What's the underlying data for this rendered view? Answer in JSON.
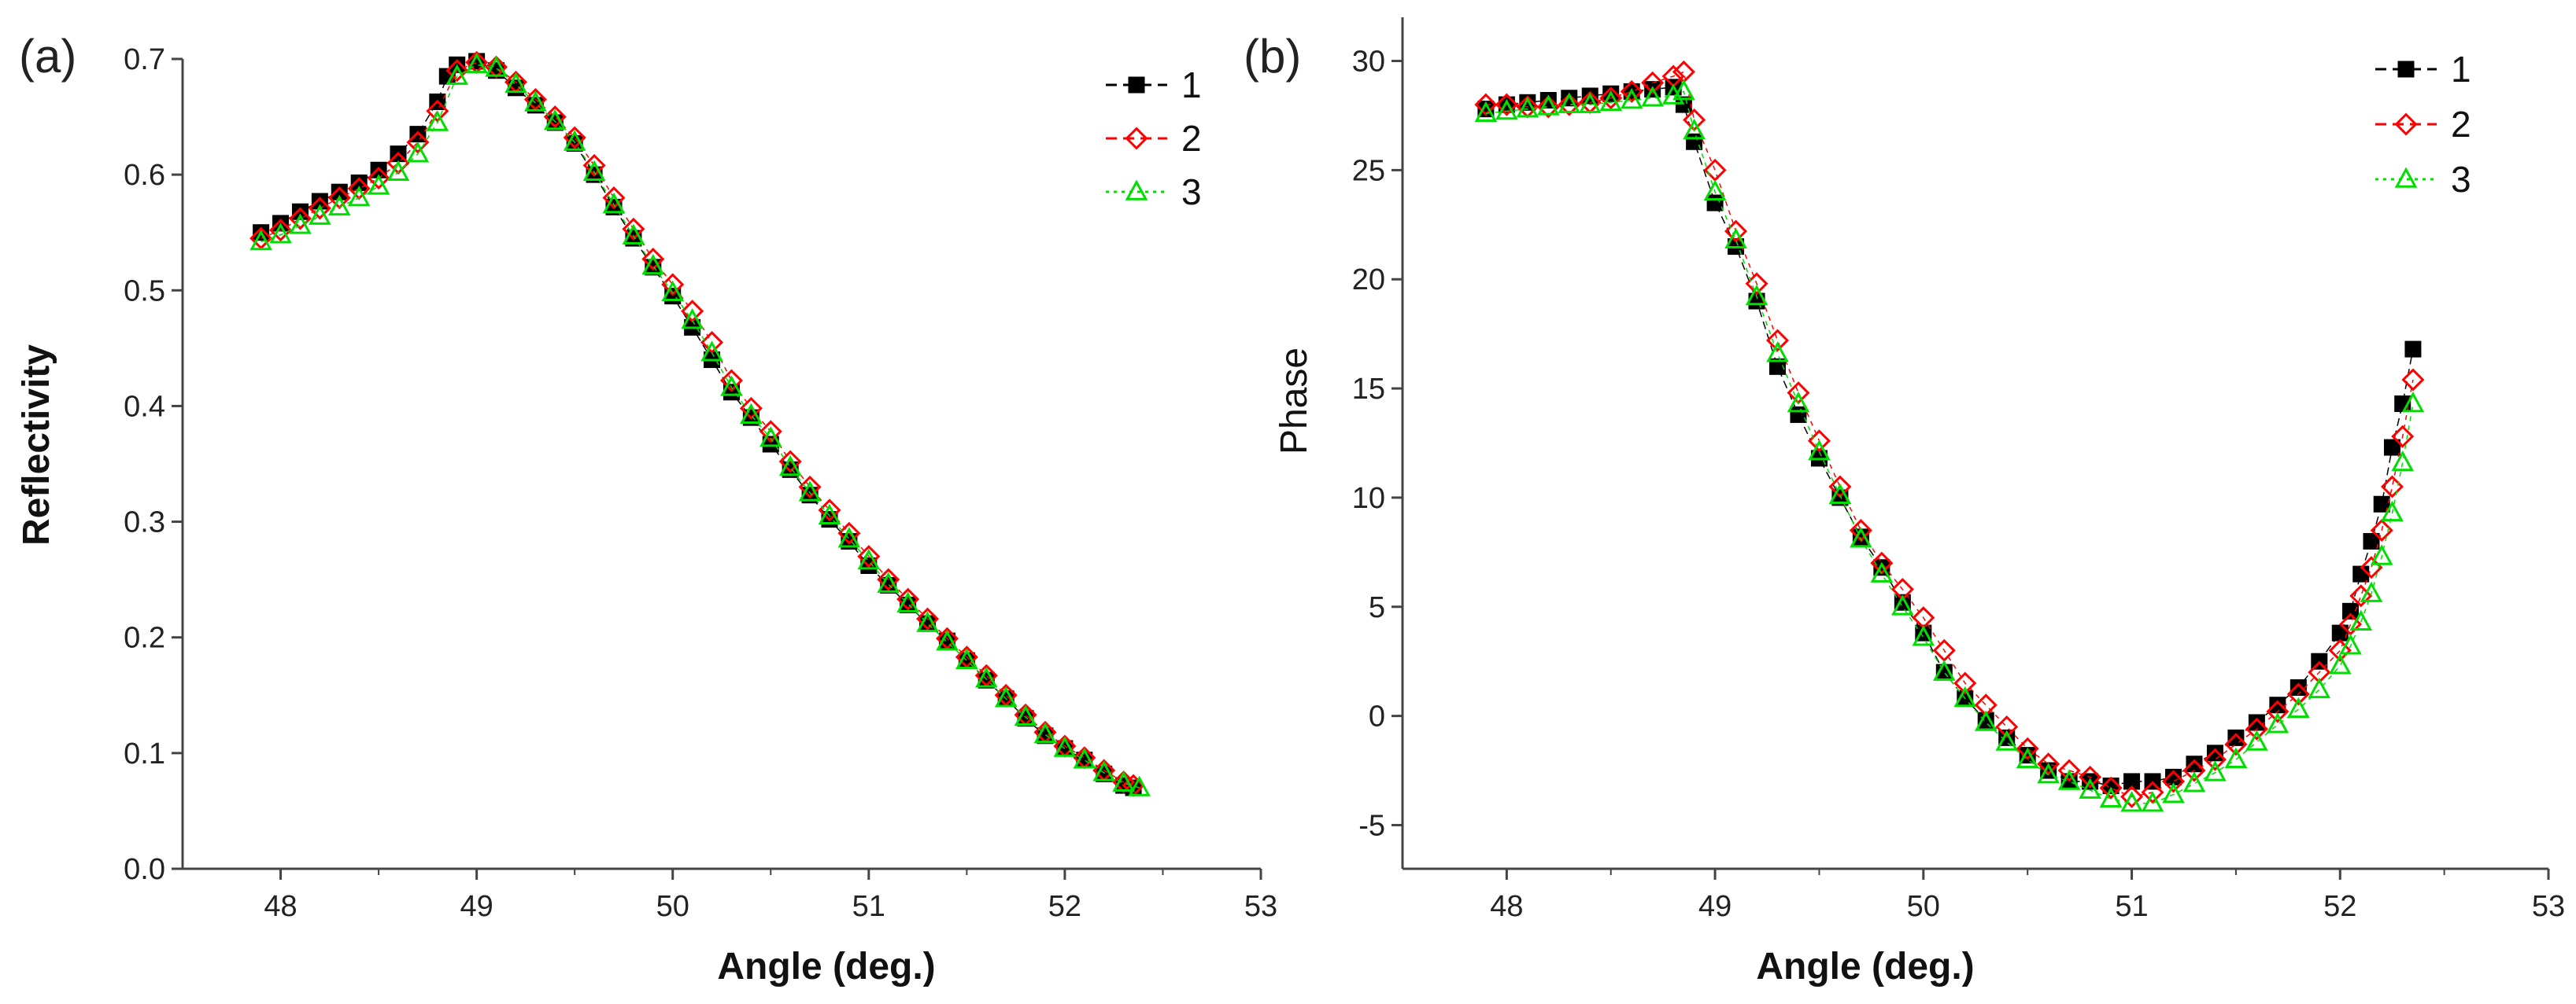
{
  "chart_data": [
    {
      "type": "scatter",
      "panel_label": "(a)",
      "title": "",
      "xlabel": "Angle (deg.)",
      "ylabel": "Reflectivity",
      "xlim": [
        47.5,
        53
      ],
      "ylim": [
        0.0,
        0.7
      ],
      "xticks": [
        "48",
        "49",
        "50",
        "51",
        "52",
        "53"
      ],
      "yticks": [
        "0.0",
        "0.1",
        "0.2",
        "0.3",
        "0.4",
        "0.5",
        "0.6",
        "0.7"
      ],
      "legend_position": "top-right",
      "series": [
        {
          "name": "1",
          "color": "#000000",
          "marker": "square",
          "x": [
            47.9,
            48.0,
            48.1,
            48.2,
            48.3,
            48.4,
            48.5,
            48.6,
            48.7,
            48.8,
            48.85,
            48.9,
            49.0,
            49.1,
            49.2,
            49.3,
            49.4,
            49.5,
            49.6,
            49.7,
            49.8,
            49.9,
            50.0,
            50.1,
            50.2,
            50.3,
            50.4,
            50.5,
            50.6,
            50.7,
            50.8,
            50.9,
            51.0,
            51.1,
            51.2,
            51.3,
            51.4,
            51.5,
            51.6,
            51.7,
            51.8,
            51.9,
            52.0,
            52.1,
            52.2,
            52.3,
            52.35
          ],
          "y": [
            0.55,
            0.558,
            0.568,
            0.577,
            0.585,
            0.593,
            0.604,
            0.618,
            0.635,
            0.663,
            0.685,
            0.695,
            0.698,
            0.69,
            0.675,
            0.66,
            0.645,
            0.627,
            0.6,
            0.572,
            0.545,
            0.52,
            0.495,
            0.468,
            0.44,
            0.412,
            0.39,
            0.367,
            0.345,
            0.323,
            0.302,
            0.283,
            0.262,
            0.245,
            0.228,
            0.212,
            0.197,
            0.18,
            0.163,
            0.147,
            0.13,
            0.115,
            0.104,
            0.094,
            0.082,
            0.072,
            0.07
          ]
        },
        {
          "name": "2",
          "color": "#ff0000",
          "marker": "diamond-open",
          "x": [
            47.9,
            48.0,
            48.1,
            48.2,
            48.3,
            48.4,
            48.5,
            48.6,
            48.7,
            48.8,
            48.9,
            49.0,
            49.1,
            49.2,
            49.3,
            49.4,
            49.5,
            49.6,
            49.7,
            49.8,
            49.9,
            50.0,
            50.1,
            50.2,
            50.3,
            50.4,
            50.5,
            50.6,
            50.7,
            50.8,
            50.9,
            51.0,
            51.1,
            51.2,
            51.3,
            51.4,
            51.5,
            51.6,
            51.7,
            51.8,
            51.9,
            52.0,
            52.1,
            52.2,
            52.3,
            52.35
          ],
          "y": [
            0.545,
            0.552,
            0.562,
            0.571,
            0.58,
            0.588,
            0.597,
            0.61,
            0.628,
            0.655,
            0.69,
            0.697,
            0.693,
            0.68,
            0.665,
            0.65,
            0.632,
            0.608,
            0.58,
            0.553,
            0.527,
            0.505,
            0.482,
            0.455,
            0.422,
            0.398,
            0.378,
            0.352,
            0.33,
            0.31,
            0.29,
            0.27,
            0.25,
            0.233,
            0.216,
            0.199,
            0.183,
            0.167,
            0.15,
            0.133,
            0.118,
            0.106,
            0.096,
            0.085,
            0.075,
            0.072
          ]
        },
        {
          "name": "3",
          "color": "#00dd00",
          "marker": "triangle-open",
          "x": [
            47.9,
            48.0,
            48.1,
            48.2,
            48.3,
            48.4,
            48.5,
            48.6,
            48.7,
            48.8,
            48.9,
            49.0,
            49.1,
            49.2,
            49.3,
            49.4,
            49.5,
            49.6,
            49.7,
            49.8,
            49.9,
            50.0,
            50.1,
            50.2,
            50.3,
            50.4,
            50.5,
            50.6,
            50.7,
            50.8,
            50.9,
            51.0,
            51.1,
            51.2,
            51.3,
            51.4,
            51.5,
            51.6,
            51.7,
            51.8,
            51.9,
            52.0,
            52.1,
            52.2,
            52.3,
            52.38
          ],
          "y": [
            0.542,
            0.548,
            0.556,
            0.564,
            0.572,
            0.58,
            0.59,
            0.602,
            0.618,
            0.645,
            0.685,
            0.695,
            0.692,
            0.678,
            0.662,
            0.646,
            0.628,
            0.602,
            0.574,
            0.547,
            0.521,
            0.498,
            0.474,
            0.446,
            0.416,
            0.392,
            0.372,
            0.347,
            0.325,
            0.305,
            0.285,
            0.266,
            0.246,
            0.229,
            0.212,
            0.196,
            0.18,
            0.164,
            0.147,
            0.131,
            0.116,
            0.104,
            0.094,
            0.083,
            0.074,
            0.07
          ]
        }
      ]
    },
    {
      "type": "scatter",
      "panel_label": "(b)",
      "title": "",
      "xlabel": "Angle (deg.)",
      "ylabel": "Phase",
      "xlim": [
        47.5,
        53
      ],
      "ylim": [
        -7,
        32
      ],
      "xticks": [
        "48",
        "49",
        "50",
        "51",
        "52",
        "53"
      ],
      "yticks": [
        "-5",
        "0",
        "5",
        "10",
        "15",
        "20",
        "25",
        "30"
      ],
      "legend_position": "top-right",
      "series": [
        {
          "name": "1",
          "color": "#000000",
          "marker": "square",
          "x": [
            47.9,
            48.0,
            48.1,
            48.2,
            48.3,
            48.4,
            48.5,
            48.6,
            48.7,
            48.8,
            48.85,
            48.9,
            49.0,
            49.1,
            49.2,
            49.3,
            49.4,
            49.5,
            49.6,
            49.7,
            49.8,
            49.9,
            50.0,
            50.1,
            50.2,
            50.3,
            50.4,
            50.5,
            50.6,
            50.7,
            50.8,
            50.9,
            51.0,
            51.1,
            51.2,
            51.3,
            51.4,
            51.5,
            51.6,
            51.7,
            51.8,
            51.9,
            52.0,
            52.05,
            52.1,
            52.15,
            52.2,
            52.25,
            52.3,
            52.35
          ],
          "y": [
            27.8,
            28.0,
            28.1,
            28.2,
            28.3,
            28.4,
            28.5,
            28.6,
            28.7,
            28.8,
            28.0,
            26.3,
            23.5,
            21.5,
            19.0,
            16.0,
            13.8,
            11.8,
            10.0,
            8.2,
            6.8,
            5.2,
            3.8,
            2.0,
            0.8,
            -0.2,
            -1.0,
            -1.8,
            -2.5,
            -3.0,
            -3.0,
            -3.2,
            -3.0,
            -3.0,
            -2.8,
            -2.2,
            -1.7,
            -1.0,
            -0.3,
            0.5,
            1.3,
            2.5,
            3.8,
            4.8,
            6.5,
            8.0,
            9.7,
            12.3,
            14.3,
            16.8
          ]
        },
        {
          "name": "2",
          "color": "#ff0000",
          "marker": "diamond-open",
          "x": [
            47.9,
            48.0,
            48.1,
            48.2,
            48.3,
            48.4,
            48.5,
            48.6,
            48.7,
            48.8,
            48.85,
            48.9,
            49.0,
            49.1,
            49.2,
            49.3,
            49.4,
            49.5,
            49.6,
            49.7,
            49.8,
            49.9,
            50.0,
            50.1,
            50.2,
            50.3,
            50.4,
            50.5,
            50.6,
            50.7,
            50.8,
            50.9,
            51.0,
            51.1,
            51.2,
            51.3,
            51.4,
            51.5,
            51.6,
            51.7,
            51.8,
            51.9,
            52.0,
            52.05,
            52.1,
            52.15,
            52.2,
            52.25,
            52.3,
            52.35
          ],
          "y": [
            28.0,
            28.0,
            27.9,
            27.9,
            28.0,
            28.1,
            28.3,
            28.6,
            29.0,
            29.3,
            29.5,
            27.3,
            25.0,
            22.2,
            19.8,
            17.2,
            14.8,
            12.6,
            10.5,
            8.5,
            7.0,
            5.8,
            4.5,
            3.0,
            1.5,
            0.5,
            -0.5,
            -1.5,
            -2.2,
            -2.5,
            -2.8,
            -3.3,
            -3.7,
            -3.5,
            -3.0,
            -2.5,
            -2.0,
            -1.3,
            -0.6,
            0.2,
            1.0,
            2.0,
            3.0,
            4.2,
            5.5,
            6.8,
            8.5,
            10.5,
            12.8,
            15.4
          ]
        },
        {
          "name": "3",
          "color": "#00dd00",
          "marker": "triangle-open",
          "x": [
            47.9,
            48.0,
            48.1,
            48.2,
            48.3,
            48.4,
            48.5,
            48.6,
            48.7,
            48.8,
            48.85,
            48.9,
            49.0,
            49.1,
            49.2,
            49.3,
            49.4,
            49.5,
            49.6,
            49.7,
            49.8,
            49.9,
            50.0,
            50.1,
            50.2,
            50.3,
            50.4,
            50.5,
            50.6,
            50.7,
            50.8,
            50.9,
            51.0,
            51.1,
            51.2,
            51.3,
            51.4,
            51.5,
            51.6,
            51.7,
            51.8,
            51.9,
            52.0,
            52.05,
            52.1,
            52.15,
            52.2,
            52.25,
            52.3,
            52.35
          ],
          "y": [
            27.6,
            27.7,
            27.8,
            27.9,
            28.0,
            28.0,
            28.1,
            28.2,
            28.3,
            28.4,
            28.6,
            26.8,
            24.0,
            21.8,
            19.2,
            16.6,
            14.3,
            12.1,
            10.1,
            8.1,
            6.5,
            5.0,
            3.6,
            2.0,
            0.8,
            -0.3,
            -1.2,
            -2.0,
            -2.7,
            -3.0,
            -3.4,
            -3.8,
            -4.0,
            -4.0,
            -3.6,
            -3.1,
            -2.6,
            -2.0,
            -1.2,
            -0.4,
            0.3,
            1.2,
            2.3,
            3.2,
            4.3,
            5.6,
            7.3,
            9.3,
            11.6,
            14.3
          ]
        }
      ]
    }
  ]
}
